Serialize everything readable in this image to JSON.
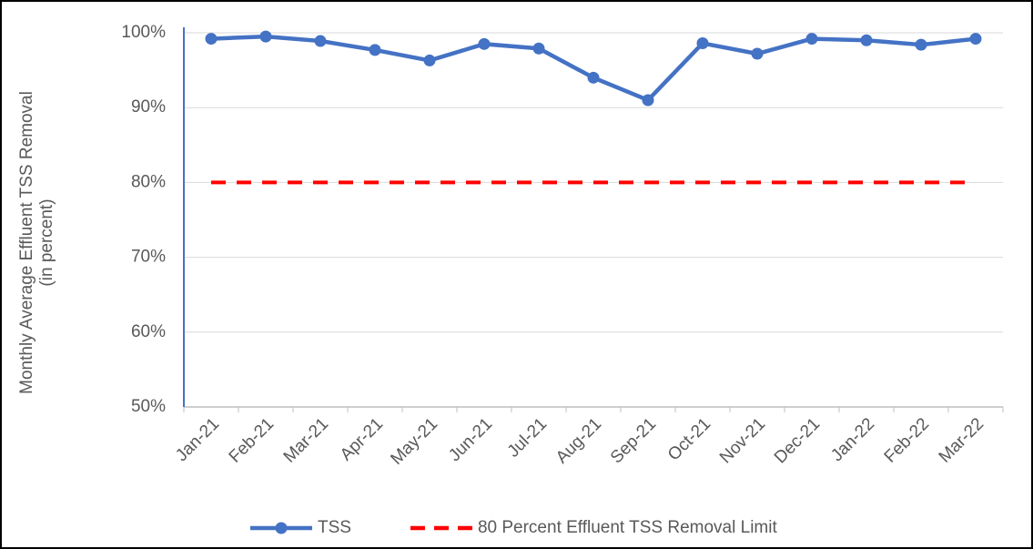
{
  "chart_data": {
    "type": "line",
    "y_label": [
      "Monthly Average Effluent TSS Removal",
      "(in percent)"
    ],
    "categories": [
      "Jan-21",
      "Feb-21",
      "Mar-21",
      "Apr-21",
      "May-21",
      "Jun-21",
      "Jul-21",
      "Aug-21",
      "Sep-21",
      "Oct-21",
      "Nov-21",
      "Dec-21",
      "Jan-22",
      "Feb-22",
      "Mar-22"
    ],
    "series": [
      {
        "name": "TSS",
        "color": "#4472c4",
        "dashed": false,
        "markers": true,
        "values": [
          99.2,
          99.5,
          98.9,
          97.7,
          96.3,
          98.5,
          97.9,
          94.0,
          91.0,
          98.6,
          97.2,
          99.2,
          99.0,
          98.4,
          99.2
        ]
      },
      {
        "name": "80 Percent Effluent TSS Removal Limit",
        "color": "#ff0000",
        "dashed": true,
        "markers": false,
        "values": [
          80,
          80,
          80,
          80,
          80,
          80,
          80,
          80,
          80,
          80,
          80,
          80,
          80,
          80,
          80
        ]
      }
    ],
    "ylim": [
      50,
      100
    ],
    "yticks": [
      {
        "value": 50,
        "label": "50%"
      },
      {
        "value": 60,
        "label": "60%"
      },
      {
        "value": 70,
        "label": "70%"
      },
      {
        "value": 80,
        "label": "80%"
      },
      {
        "value": 90,
        "label": "90%"
      },
      {
        "value": 100,
        "label": "100%"
      }
    ],
    "grid": true,
    "legend": "bottom"
  }
}
